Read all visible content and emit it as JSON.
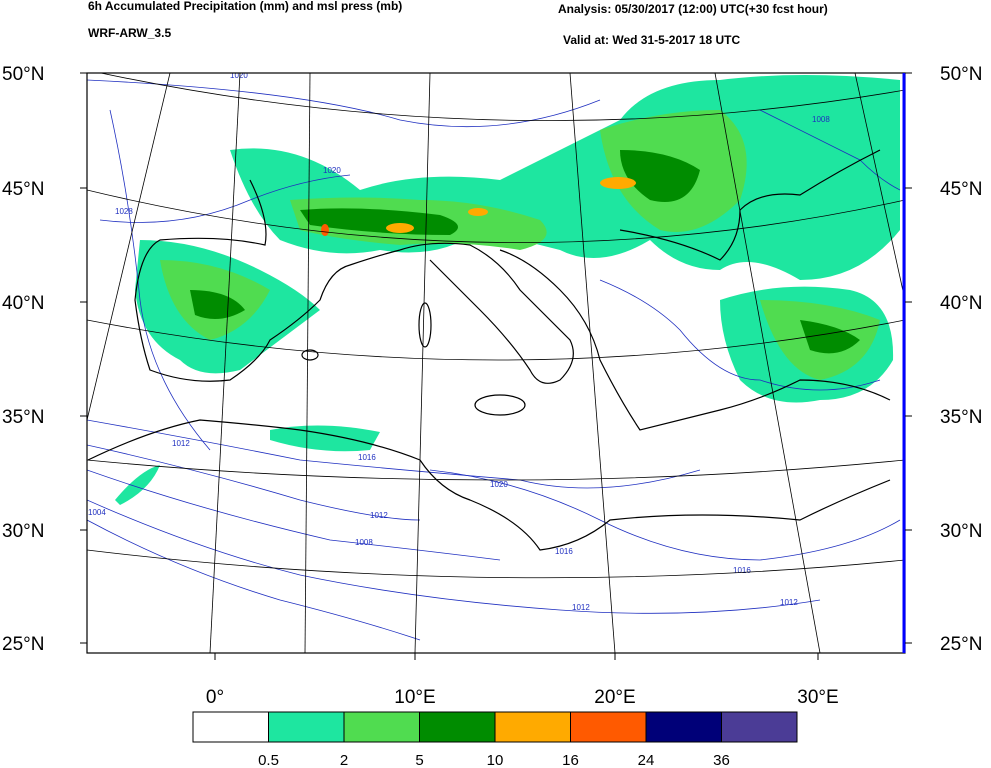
{
  "header": {
    "title": "6h Accumulated Precipitation (mm) and msl press (mb)",
    "model": "WRF-ARW_3.5",
    "analysis": "Analysis: 05/30/2017 (12:00) UTC(+30 fcst hour)",
    "valid": "Valid at: Wed 31-5-2017  18 UTC"
  },
  "map": {
    "lat_labels": [
      "50°N",
      "45°N",
      "40°N",
      "35°N",
      "30°N",
      "25°N"
    ],
    "lon_labels": [
      "0°",
      "10°E",
      "20°E",
      "30°E"
    ],
    "isobar_labels": [
      "1020",
      "1028",
      "1020",
      "1016",
      "1012",
      "1008",
      "1004",
      "1020",
      "1016",
      "1012",
      "1016",
      "1012",
      "1008",
      "1012"
    ]
  },
  "colorbar": {
    "colors": [
      "#ffffff",
      "#1ee6a0",
      "#50dc50",
      "#008c00",
      "#ffaa00",
      "#ff5a00",
      "#000078",
      "#4b3c96"
    ],
    "labels": [
      "0.5",
      "2",
      "5",
      "10",
      "16",
      "24",
      "36"
    ]
  }
}
